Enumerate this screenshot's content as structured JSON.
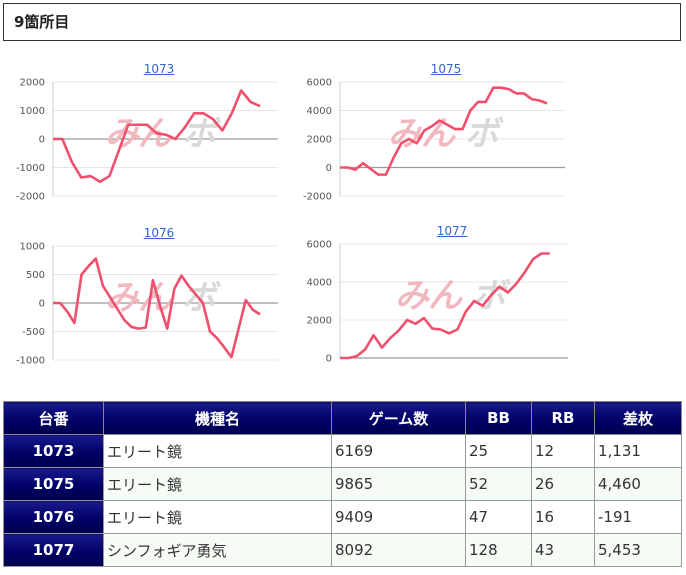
{
  "page": {
    "title": "9箇所目"
  },
  "charts": [
    {
      "label": "1073",
      "yticks": [
        2000,
        1000,
        0,
        -1000,
        -2000
      ],
      "ylim": [
        -2000,
        2000
      ],
      "values": [
        0,
        0,
        -800,
        -1350,
        -1300,
        -1500,
        -1300,
        -400,
        500,
        500,
        500,
        200,
        150,
        0,
        400,
        900,
        900,
        700,
        300,
        900,
        1700,
        1300,
        1150
      ]
    },
    {
      "label": "1075",
      "yticks": [
        6000,
        4000,
        2000,
        0,
        -2000
      ],
      "ylim": [
        -2000,
        6000
      ],
      "values": [
        0,
        0,
        -150,
        300,
        -100,
        -500,
        -500,
        700,
        1700,
        2000,
        1700,
        2600,
        2900,
        3300,
        3000,
        2700,
        2700,
        4000,
        4600,
        4600,
        5600,
        5600,
        5500,
        5200,
        5200,
        4800,
        4700,
        4500
      ]
    },
    {
      "label": "1076",
      "yticks": [
        1000,
        500,
        0,
        -500,
        -1000
      ],
      "ylim": [
        -1000,
        1000
      ],
      "values": [
        0,
        0,
        -150,
        -350,
        500,
        650,
        780,
        300,
        100,
        -100,
        -300,
        -420,
        -450,
        -430,
        400,
        -50,
        -450,
        250,
        480,
        300,
        150,
        0,
        -500,
        -620,
        -780,
        -950,
        -450,
        50,
        -120,
        -200
      ]
    },
    {
      "label": "1077",
      "yticks": [
        6000,
        4000,
        2000,
        0
      ],
      "ylim": [
        0,
        6000
      ],
      "values": [
        0,
        0,
        100,
        450,
        1200,
        550,
        1050,
        1450,
        2000,
        1800,
        2100,
        1550,
        1500,
        1300,
        1500,
        2450,
        3000,
        2750,
        3300,
        3750,
        3450,
        3900,
        4500,
        5200,
        5500,
        5500
      ]
    }
  ],
  "watermark": {
    "a": "みん",
    "b": "ボ"
  },
  "table": {
    "headers": [
      "台番",
      "機種名",
      "ゲーム数",
      "BB",
      "RB",
      "差枚"
    ],
    "rows": [
      {
        "no": "1073",
        "name": "エリート鏡",
        "games": "6169",
        "bb": "25",
        "rb": "12",
        "diff": "1,131"
      },
      {
        "no": "1075",
        "name": "エリート鏡",
        "games": "9865",
        "bb": "52",
        "rb": "26",
        "diff": "4,460"
      },
      {
        "no": "1076",
        "name": "エリート鏡",
        "games": "9409",
        "bb": "47",
        "rb": "16",
        "diff": "-191"
      },
      {
        "no": "1077",
        "name": "シンフォギア勇気",
        "games": "8092",
        "bb": "128",
        "rb": "43",
        "diff": "5,453"
      }
    ]
  },
  "colors": {
    "line": "#f0506e",
    "header_bg": "#000066",
    "negative": "#e00000"
  }
}
